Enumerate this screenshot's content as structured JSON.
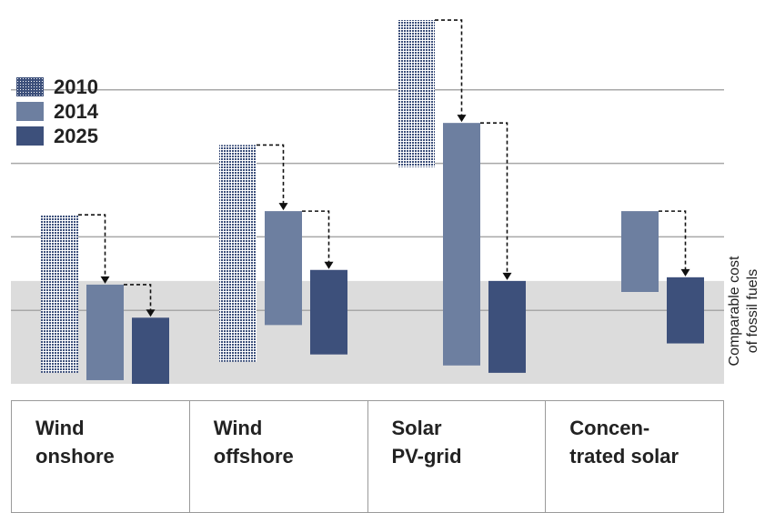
{
  "chart_data": {
    "type": "bar",
    "title": "",
    "categories": [
      {
        "lines": [
          "Wind",
          "onshore"
        ]
      },
      {
        "lines": [
          "Wind",
          "offshore"
        ]
      },
      {
        "lines": [
          "Solar",
          "PV-grid"
        ]
      },
      {
        "lines": [
          "Concen-",
          "trated solar"
        ]
      }
    ],
    "ylim": [
      0,
      10
    ],
    "grid": true,
    "series": [
      {
        "name": "2010",
        "color": "#6d7fa0",
        "pattern": "dotted",
        "ranges": [
          [
            0.3,
            4.6
          ],
          [
            0.6,
            6.5
          ],
          [
            5.9,
            9.9
          ],
          null
        ]
      },
      {
        "name": "2014",
        "color": "#6d7fa0",
        "pattern": "solid",
        "ranges": [
          [
            0.1,
            2.7
          ],
          [
            1.6,
            4.7
          ],
          [
            0.5,
            7.1
          ],
          [
            2.5,
            4.7
          ]
        ]
      },
      {
        "name": "2025",
        "color": "#3d507b",
        "pattern": "solid",
        "ranges": [
          [
            0.0,
            1.8
          ],
          [
            0.8,
            3.1
          ],
          [
            0.3,
            2.8
          ],
          [
            1.1,
            2.9
          ]
        ]
      }
    ],
    "band": {
      "range": [
        0.0,
        2.8
      ],
      "color": "#dcdcdc",
      "label_lines": [
        "Comparable cost",
        "of fossil fuels"
      ]
    },
    "legend_position": "top-left"
  }
}
